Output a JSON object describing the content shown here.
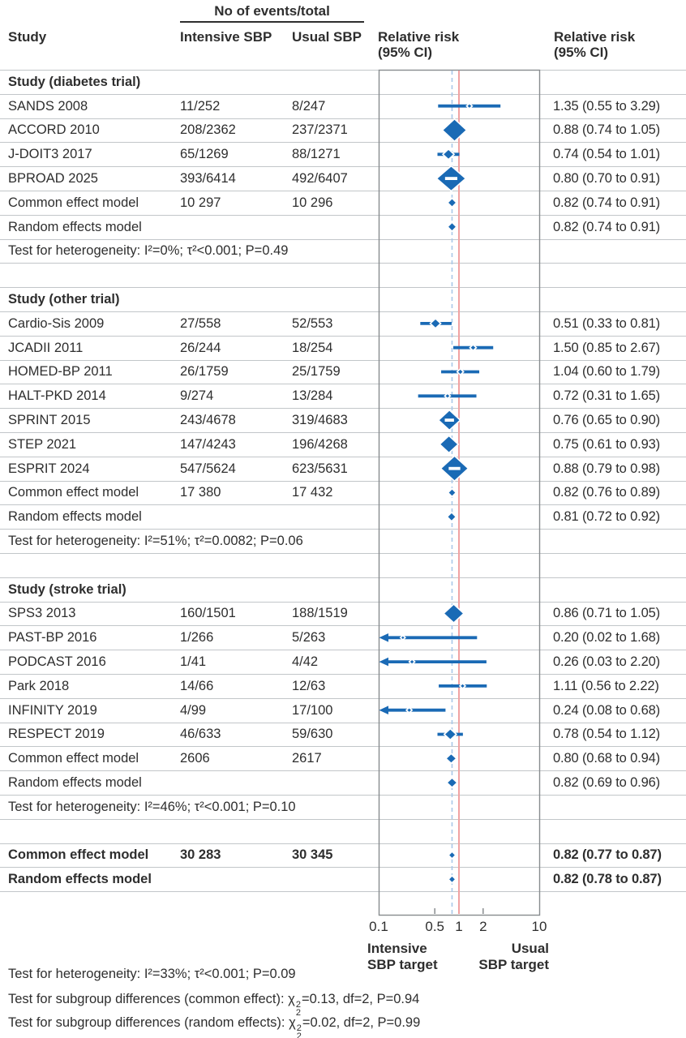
{
  "colors": {
    "marker_blue": "#1a6ab5",
    "null_line_red": "#f0a3a3",
    "overall_dashed_blue": "#a8c8e8",
    "row_line_grey": "#c2c6c9",
    "frame_grey": "#888c8f"
  },
  "header": {
    "events_total": "No of events/total",
    "study": "Study",
    "intensive": "Intensive SBP",
    "usual": "Usual SBP",
    "rr_plot_line1": "Relative risk",
    "rr_plot_line2": "(95% CI)",
    "rr_text_line1": "Relative risk",
    "rr_text_line2": "(95% CI)"
  },
  "axis": {
    "ticks": [
      "0.1",
      "0.5",
      "1",
      "2",
      "10"
    ],
    "left_caption_line1": "Intensive",
    "left_caption_line2": "SBP target",
    "right_caption_line1": "Usual",
    "right_caption_line2": "SBP target"
  },
  "footnotes": {
    "heterogeneity": "Test for heterogeneity: I²=33%; τ²<0.001; P=0.09",
    "subgroup_common": {
      "prefix": "Test for subgroup differences (common effect): ",
      "chi": "χ",
      "sup": "2",
      "sub": "2",
      "suffix": "=0.13, df=2, P=0.94"
    },
    "subgroup_random": {
      "prefix": "Test for subgroup differences (random effects): ",
      "chi": "χ",
      "sup": "2",
      "sub": "2",
      "suffix": "=0.02, df=2, P=0.99"
    }
  },
  "chart_data": {
    "type": "forest",
    "x_scale": "log10",
    "x_range": [
      0.1,
      10
    ],
    "null_line": 1.0,
    "overall_estimate_line": 0.82,
    "rows": [
      {
        "kind": "section",
        "label": "Study (diabetes trial)"
      },
      {
        "kind": "study",
        "label": "SANDS 2008",
        "intensive": "11/252",
        "usual": "8/247",
        "rr": "1.35 (0.55 to 3.29)",
        "est": 1.35,
        "lo": 0.55,
        "hi": 3.29,
        "size": 7
      },
      {
        "kind": "study",
        "label": "ACCORD 2010",
        "intensive": "208/2362",
        "usual": "237/2371",
        "rr": "0.88 (0.74 to 1.05)",
        "est": 0.88,
        "lo": 0.74,
        "hi": 1.05,
        "size": 30
      },
      {
        "kind": "study",
        "label": "J-DOIT3 2017",
        "intensive": "65/1269",
        "usual": "88/1271",
        "rr": "0.74 (0.54 to 1.01)",
        "est": 0.74,
        "lo": 0.54,
        "hi": 1.01,
        "size": 14
      },
      {
        "kind": "study",
        "label": "BPROAD 2025",
        "intensive": "393/6414",
        "usual": "492/6407",
        "rr": "0.80 (0.70 to 0.91)",
        "est": 0.8,
        "lo": 0.7,
        "hi": 0.91,
        "size": 36,
        "stripe": true
      },
      {
        "kind": "summary",
        "label": "Common effect model",
        "intensive": "10 297",
        "usual": "10 296",
        "rr": "0.82 (0.74 to 0.91)",
        "est": 0.82,
        "lo": 0.74,
        "hi": 0.91,
        "size": 11
      },
      {
        "kind": "summary",
        "label": "Random effects model",
        "rr": "0.82 (0.74 to 0.91)",
        "est": 0.82,
        "lo": 0.74,
        "hi": 0.91,
        "size": 11
      },
      {
        "kind": "test",
        "label": "Test for heterogeneity: I²=0%; τ²<0.001; P=0.49"
      },
      {
        "kind": "spacer"
      },
      {
        "kind": "section",
        "label": "Study (other trial)"
      },
      {
        "kind": "study",
        "label": "Cardio-Sis 2009",
        "intensive": "27/558",
        "usual": "52/553",
        "rr": "0.51 (0.33 to 0.81)",
        "est": 0.51,
        "lo": 0.33,
        "hi": 0.81,
        "size": 13
      },
      {
        "kind": "study",
        "label": "JCADII 2011",
        "intensive": "26/244",
        "usual": "18/254",
        "rr": "1.50 (0.85 to 2.67)",
        "est": 1.5,
        "lo": 0.85,
        "hi": 2.67,
        "size": 8
      },
      {
        "kind": "study",
        "label": "HOMED-BP 2011",
        "intensive": "26/1759",
        "usual": "25/1759",
        "rr": "1.04 (0.60 to 1.79)",
        "est": 1.04,
        "lo": 0.6,
        "hi": 1.79,
        "size": 8
      },
      {
        "kind": "study",
        "label": "HALT-PKD 2014",
        "intensive": "9/274",
        "usual": "13/284",
        "rr": "0.72 (0.31 to 1.65)",
        "est": 0.72,
        "lo": 0.31,
        "hi": 1.65,
        "size": 7
      },
      {
        "kind": "study",
        "label": "SPRINT 2015",
        "intensive": "243/4678",
        "usual": "319/4683",
        "rr": "0.76 (0.65 to 0.90)",
        "est": 0.76,
        "lo": 0.65,
        "hi": 0.9,
        "size": 27,
        "stripe": true
      },
      {
        "kind": "study",
        "label": "STEP 2021",
        "intensive": "147/4243",
        "usual": "196/4268",
        "rr": "0.75 (0.61 to 0.93)",
        "est": 0.75,
        "lo": 0.61,
        "hi": 0.93,
        "size": 23
      },
      {
        "kind": "study",
        "label": "ESPRIT 2024",
        "intensive": "547/5624",
        "usual": "623/5631",
        "rr": "0.88 (0.79 to 0.98)",
        "est": 0.88,
        "lo": 0.79,
        "hi": 0.98,
        "size": 34,
        "stripe": true
      },
      {
        "kind": "summary",
        "label": "Common effect model",
        "intensive": "17 380",
        "usual": "17 432",
        "rr": "0.82 (0.76 to 0.89)",
        "est": 0.82,
        "lo": 0.76,
        "hi": 0.89,
        "size": 10
      },
      {
        "kind": "summary",
        "label": "Random effects model",
        "rr": "0.81 (0.72 to 0.92)",
        "est": 0.81,
        "lo": 0.72,
        "hi": 0.92,
        "size": 11
      },
      {
        "kind": "test",
        "label": "Test for heterogeneity: I²=51%; τ²=0.0082; P=0.06"
      },
      {
        "kind": "spacer"
      },
      {
        "kind": "section",
        "label": "Study (stroke trial)"
      },
      {
        "kind": "study",
        "label": "SPS3 2013",
        "intensive": "160/1501",
        "usual": "188/1519",
        "rr": "0.86 (0.71 to 1.05)",
        "est": 0.86,
        "lo": 0.71,
        "hi": 1.05,
        "size": 25
      },
      {
        "kind": "study",
        "label": "PAST-BP 2016",
        "intensive": "1/266",
        "usual": "5/263",
        "rr": "0.20 (0.02 to 1.68)",
        "est": 0.2,
        "lo": 0.02,
        "hi": 1.68,
        "size": 6,
        "arrow": true
      },
      {
        "kind": "study",
        "label": "PODCAST 2016",
        "intensive": "1/41",
        "usual": "4/42",
        "rr": "0.26 (0.03 to 2.20)",
        "est": 0.26,
        "lo": 0.03,
        "hi": 2.2,
        "size": 7,
        "arrow": true
      },
      {
        "kind": "study",
        "label": "Park 2018",
        "intensive": "14/66",
        "usual": "12/63",
        "rr": "1.11 (0.56 to 2.22)",
        "est": 1.11,
        "lo": 0.56,
        "hi": 2.22,
        "size": 7
      },
      {
        "kind": "study",
        "label": "INFINITY 2019",
        "intensive": "4/99",
        "usual": "17/100",
        "rr": "0.24 (0.08 to 0.68)",
        "est": 0.24,
        "lo": 0.08,
        "hi": 0.68,
        "size": 7,
        "arrow": true
      },
      {
        "kind": "study",
        "label": "RESPECT 2019",
        "intensive": "46/633",
        "usual": "59/630",
        "rr": "0.78 (0.54 to 1.12)",
        "est": 0.78,
        "lo": 0.54,
        "hi": 1.12,
        "size": 15
      },
      {
        "kind": "summary",
        "label": "Common effect model",
        "intensive": "2606",
        "usual": "2617",
        "rr": "0.80 (0.68 to 0.94)",
        "est": 0.8,
        "lo": 0.68,
        "hi": 0.94,
        "size": 13
      },
      {
        "kind": "summary",
        "label": "Random effects model",
        "rr": "0.82 (0.69 to 0.96)",
        "est": 0.82,
        "lo": 0.69,
        "hi": 0.96,
        "size": 13
      },
      {
        "kind": "test",
        "label": "Test for heterogeneity: I²=46%; τ²<0.001; P=0.10"
      },
      {
        "kind": "spacer"
      },
      {
        "kind": "overall",
        "label": "Common effect model",
        "intensive": "30 283",
        "usual": "30 345",
        "rr": "0.82 (0.77 to 0.87)",
        "est": 0.82,
        "lo": 0.77,
        "hi": 0.87,
        "size": 9
      },
      {
        "kind": "overall",
        "label": "Random effects model",
        "rr": "0.82 (0.78 to 0.87)",
        "est": 0.82,
        "lo": 0.78,
        "hi": 0.87,
        "size": 9
      }
    ]
  }
}
